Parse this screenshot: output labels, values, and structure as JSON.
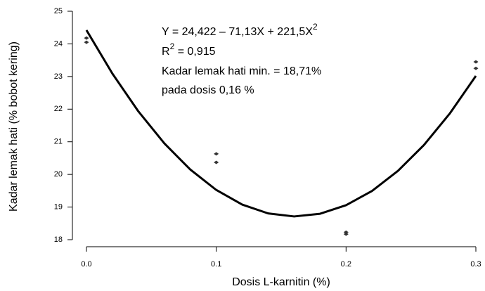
{
  "chart_data": {
    "type": "scatter",
    "x_label": "Dosis L-karnitin (%)",
    "y_label": "Kadar lemak hati (% bobot kering)",
    "xlim": [
      0,
      0.3
    ],
    "ylim": [
      18,
      25
    ],
    "xticks": [
      {
        "value": 0,
        "label": "0.0"
      },
      0.1,
      0.2,
      0.3
    ],
    "yticks": [
      18,
      19,
      20,
      21,
      22,
      23,
      24,
      25
    ],
    "series": [
      {
        "type": "scatter",
        "color": "#333333",
        "x": [
          0,
          0,
          0.1,
          0.1,
          0.2,
          0.2,
          0.3,
          0.3
        ],
        "values": [
          24.05,
          24.18,
          20.63,
          20.37,
          18.23,
          18.17,
          23.45,
          23.25
        ]
      },
      {
        "type": "line",
        "color": "#000000",
        "x": [
          0,
          0.02,
          0.04,
          0.06,
          0.08,
          0.1,
          0.12,
          0.14,
          0.16,
          0.18,
          0.2,
          0.22,
          0.24,
          0.26,
          0.28,
          0.3
        ],
        "values": [
          24.422,
          23.088,
          21.931,
          20.952,
          20.149,
          19.524,
          19.076,
          18.805,
          18.712,
          18.795,
          19.056,
          19.494,
          20.109,
          20.902,
          21.871,
          23.018
        ]
      }
    ],
    "equation": [
      "Y = 24,422   – 71,13X + 221,5X",
      "2"
    ],
    "r_squared": [
      "R",
      "2",
      " = 0,915"
    ],
    "notes": [
      "Kadar lemak hati min. =  18,71%",
      "pada dosis 0,16 %"
    ]
  }
}
